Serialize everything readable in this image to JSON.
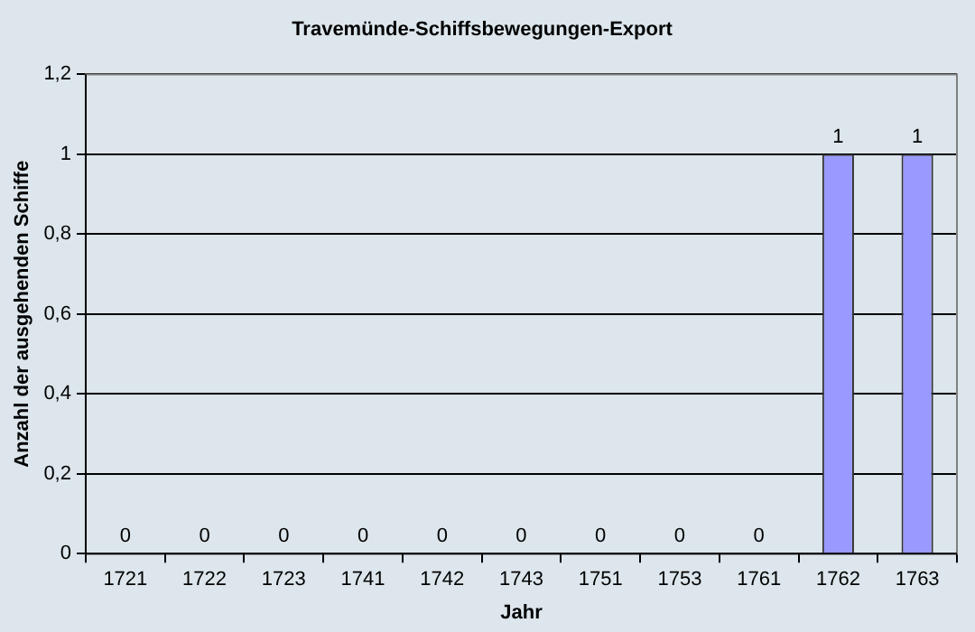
{
  "chart_data": {
    "type": "bar",
    "title": "Travemünde-Schiffsbewegungen-Export",
    "xlabel": "Jahr",
    "ylabel": "Anzahl der ausgehenden Schiffe",
    "categories": [
      "1721",
      "1722",
      "1723",
      "1741",
      "1742",
      "1743",
      "1751",
      "1753",
      "1761",
      "1762",
      "1763"
    ],
    "values": [
      0,
      0,
      0,
      0,
      0,
      0,
      0,
      0,
      0,
      1,
      1
    ],
    "color": "#9999ff",
    "ylim": [
      0,
      1.2
    ],
    "yticks": [
      0,
      {
        "value": 0.2,
        "label": "0,2"
      },
      {
        "value": 0.4,
        "label": "0,4"
      },
      {
        "value": 0.6,
        "label": "0,6"
      },
      {
        "value": 0.8,
        "label": "0,8"
      },
      1,
      {
        "value": 1.2,
        "label": "1,2"
      }
    ],
    "grid": "y",
    "legend": false,
    "data_labels": true
  }
}
